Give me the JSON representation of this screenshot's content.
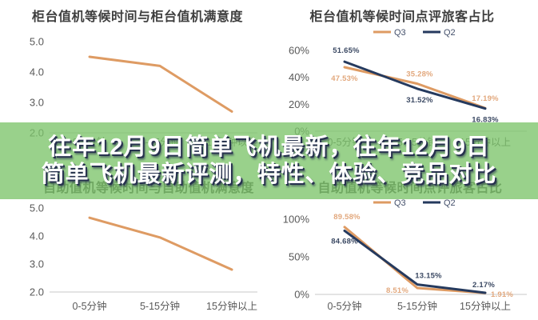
{
  "overlay": {
    "line1": "往年12月9日简单飞机最新，往年12月9日",
    "line2": "简单飞机最新评测，特性、体验、竞品对比",
    "band_color": "rgba(124,196,106,0.78)",
    "text_color": "#FFFFFF",
    "shadow_color": "#27324E"
  },
  "colors": {
    "q3_series": "#DE9B63",
    "q2_series": "#253A5E",
    "q3_label": "#E2A87D",
    "q2_label": "#3B4963",
    "axis_line": "#C9C9C9",
    "tick_text": "#595959",
    "title_text": "#3F3F3F",
    "background": "#FFFFFF"
  },
  "categories": [
    "0-5分钟",
    "5-15分钟",
    "15分钟以上"
  ],
  "chart_data": [
    {
      "type": "line",
      "title": "柜台值机等候时间与柜台值机满意度",
      "categories": [
        "0-5分钟",
        "5-15分钟",
        "15分钟以上"
      ],
      "xlabel": "",
      "ylabel": "",
      "ylim": [
        2.0,
        5.0
      ],
      "yticks": [
        "5.0",
        "4.0",
        "3.0",
        "2.0"
      ],
      "legend": "none",
      "grid": false,
      "series": [
        {
          "name": "",
          "color": "#DE9B63",
          "values": [
            4.5,
            4.2,
            2.7
          ]
        }
      ]
    },
    {
      "type": "line",
      "title": "柜台值机等候时间点评旅客占比",
      "categories": [
        "0-5分钟",
        "5-15分钟",
        "15分钟以上"
      ],
      "xlabel": "",
      "ylabel": "",
      "ylim": [
        0,
        60
      ],
      "yticks": [
        "60%",
        "40%",
        "20%",
        "0%"
      ],
      "legend": "top",
      "grid": false,
      "label_format": "pct2",
      "series": [
        {
          "name": "Q3",
          "color": "#DE9B63",
          "label_color": "#E2A87D",
          "values": [
            47.53,
            35.28,
            17.19
          ]
        },
        {
          "name": "Q2",
          "color": "#253A5E",
          "label_color": "#3B4963",
          "values": [
            51.65,
            31.52,
            16.83
          ]
        }
      ]
    },
    {
      "type": "line",
      "title": "自助值机等候时间与自助值机满意度",
      "categories": [
        "0-5分钟",
        "5-15分钟",
        "15分钟以上"
      ],
      "xlabel": "",
      "ylabel": "",
      "ylim": [
        2.0,
        5.0
      ],
      "yticks": [
        "5.0",
        "4.0",
        "3.0",
        "2.0"
      ],
      "legend": "none",
      "grid": false,
      "series": [
        {
          "name": "",
          "color": "#DE9B63",
          "values": [
            4.65,
            3.95,
            2.8
          ]
        }
      ]
    },
    {
      "type": "line",
      "title": "自助值机等候时间点评旅客占比",
      "categories": [
        "0-5分钟",
        "5-15分钟",
        "15分钟以上"
      ],
      "xlabel": "",
      "ylabel": "",
      "ylim": [
        0,
        100
      ],
      "yticks": [
        "100%",
        "50%",
        "0%"
      ],
      "legend": "top",
      "grid": false,
      "label_format": "pct2",
      "series": [
        {
          "name": "Q3",
          "color": "#DE9B63",
          "label_color": "#E2A87D",
          "values": [
            89.58,
            8.51,
            1.91
          ]
        },
        {
          "name": "Q2",
          "color": "#253A5E",
          "label_color": "#3B4963",
          "values": [
            84.68,
            13.15,
            2.17
          ]
        }
      ]
    }
  ]
}
